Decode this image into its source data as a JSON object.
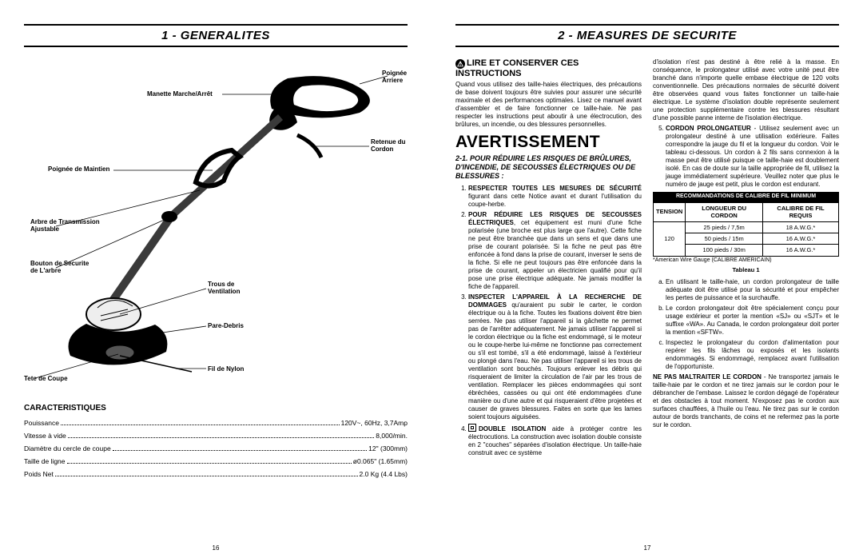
{
  "colors": {
    "page_bg": "#ffffff",
    "text": "#000000",
    "rule": "#000000",
    "table_header_bg": "#000000",
    "table_header_fg": "#ffffff"
  },
  "left": {
    "section_number": "1",
    "section_title": "GENERALITES",
    "callouts": {
      "poignee_arriere": "Poignée Arriere",
      "manette": "Manette Marche/Arrêt",
      "retenue": "Retenue du\nCordon",
      "poignee_maintien": "Poignée de Maintien",
      "arbre": "Arbre de Transmission\nAjustable",
      "bouton": "Bouton de Securite\nde L'arbre",
      "trous": "Trous de\nVentilation",
      "pare_debris": "Pare-Debris",
      "fil": "Fil de Nylon",
      "tete": "Tete de Coupe"
    },
    "specs_heading": "CARACTERISTIQUES",
    "specs": [
      {
        "label": "Pouissance",
        "value": "120V~, 60Hz, 3,7Amp"
      },
      {
        "label": "Vitesse à vide",
        "value": "8,000/min."
      },
      {
        "label": "Diamètre du cercle de coupe",
        "value": "12\" (300mm)"
      },
      {
        "label": "Taille de ligne",
        "value": "ø0.065\" (1.65mm)"
      },
      {
        "label": "Poids Net",
        "value": "2.0 Kg (4.4 Lbs)"
      }
    ],
    "page_number": "16"
  },
  "right": {
    "section_number": "2",
    "section_title": "MEASURES DE SECURITE",
    "lire_heading": "LIRE ET CONSERVER CES INSTRUCTIONS",
    "intro": "Quand vous utilisez des taille-haies électriques, des précautions de base doivent toujours être suivies pour assurer une sécurité maximale et des performances optimales. Lisez ce manuel avant d'assembler et de faire fonctionner ce taille-haie. Ne pas respecter les instructions peut aboutir à une électrocution, des brûlures, un incendie, ou des blessures personnelles.",
    "avert": "AVERTISSEMENT",
    "sub_number": "2-1.",
    "sub_title": "POUR RÉDUIRE LES RISQUES DE BRÛLURES, D'INCENDIE, DE SECOUSSES ÉLECTRIQUES OU DE BLESSURES :",
    "rules": [
      {
        "lead": "RESPECTER TOUTES LES MESURES DE SÉCURITÉ",
        "body": " figurant dans cette Notice avant et durant l'utilisation du coupe-herbe."
      },
      {
        "lead": "POUR RÉDUIRE LES RISQUES DE SECOUSSES ÉLECTRIQUES",
        "body": ", cet équipement est muni d'une fiche polarisée (une broche est plus large que l'autre). Cette fiche ne peut être branchée que dans un sens et que dans une prise de courant polarisée. Si la fiche ne peut pas être enfoncée à fond dans la prise de courant, inverser le sens de la fiche. Si elle ne peut toujours pas être enfoncée dans la prise de courant, appeler un électricien qualifié pour qu'il pose une prise électrique adéquate. Ne jamais modifier la fiche de l'appareil."
      },
      {
        "lead": "INSPECTER L'APPAREIL À LA RECHERCHE DE DOMMAGES",
        "body": " qu'auraient pu subir le carter, le cordon électrique ou à la fiche. Toutes les fixations doivent être bien serrées. Ne pas utiliser l'appareil si la gâchette ne permet pas de l'arrêter adéquatement. Ne jamais utiliser l'appareil si le cordon électrique ou la fiche est endommagé, si le moteur ou le coupe-herbe lui-même ne fonctionne pas correctement ou s'il est tombé, s'il a été endommagé, laissé à l'extérieur ou plongé dans l'eau. Ne pas utiliser l'appareil si les trous de ventilation sont bouchés. Toujours enlever les débris qui risqueraient de limiter la circulation de l'air par les trous de ventilation. Remplacer les pièces endommagées qui sont ébréchées, cassées ou qui ont été endommagées d'une manière ou d'une autre et qui risqueraient d'être projetées et causer de graves blessures. Faites en sorte que les lames soient toujours aiguisées."
      },
      {
        "lead": "DOUBLE ISOLATION",
        "body": " aide à protéger contre les électrocutions. La construction avec isolation double consiste en 2 \"couches\" séparées d'isolation électrique. Un taille-haie construit avec ce système",
        "icon": true
      }
    ],
    "col2_top": "d'isolation n'est pas destiné à être relié à la masse. En conséquence, le prolongateur utilisé avec votre unité peut être branché dans n'importe quelle embase électrique de 120 volts conventionnelle. Des précautions normales de sécurité doivent être observées quand vous faites fonctionner un taille-haie électrique. Le système d'isolation double représente seulement une protection supplémentaire contre les blessures résultant d'une possible panne interne de l'isolation électrique.",
    "rule5_lead": "CORDON PROLONGATEUR",
    "rule5_body": " - Utilisez seulement avec un prolongateur destiné à une utilisation extérieure. Faites correspondre la jauge du fil et la longueur du cordon. Voir le tableau ci-dessous. Un cordon à 2 fils sans connexion à la masse peut être utilisé puisque ce taille-haie est doublement isolé. En cas de doute sur la taille appropriée de fil, utilisez la jauge immédiatement supérieure. Veuillez noter que plus le numéro de jauge est petit, plus le cordon est endurant.",
    "table": {
      "caption": "RECOMMANDATIONS DE CALIBRE DE FIL MINIMUM",
      "headers": [
        "TENSION",
        "LONGUEUR DU CORDON",
        "CALIBRE DE FIL REQUIS"
      ],
      "voltage": "120",
      "rows": [
        [
          "25 pieds / 7,5m",
          "18 A.W.G.*"
        ],
        [
          "50 pieds / 15m",
          "16 A.W.G.*"
        ],
        [
          "100 pieds / 30m",
          "16 A.W.G.*"
        ]
      ],
      "footnote": "*American Wire Gauge (CALIBRE AMERICAIN)",
      "label": "Tableau 1"
    },
    "letters": [
      "En utilisant le taille-haie, un cordon prolongateur de taille adéquate doit être utilisé pour la sécurité et pour empêcher les pertes de puissance et la surchauffe.",
      "Le cordon prolongateur doit être spécialement conçu pour usage extérieur et porter la mention «SJ» ou «SJT» et le suffixe «WA». Au Canada, le cordon prolongateur doit porter la mention «SFTW».",
      "Inspectez le prolongateur du cordon d'alimentation pour repérer les fils lâches ou exposés et les isolants endommagés. Si endommagé, remplacez avant l'utilisation de l'opportuniste."
    ],
    "ne_pas_lead": "NE PAS MALTRAITER LE CORDON",
    "ne_pas_body": " - Ne transportez jamais le taille-haie par le cordon et ne tirez jamais sur le cordon pour le débrancher de l'embase. Laissez le cordon dégagé de l'opérateur et des obstacles à tout moment. N'exposez pas le cordon aux surfaces chauffées, à l'huile ou l'eau. Ne tirez pas sur le cordon autour de bords tranchants, de coins et ne refermez pas la porte sur le cordon.",
    "page_number": "17"
  }
}
